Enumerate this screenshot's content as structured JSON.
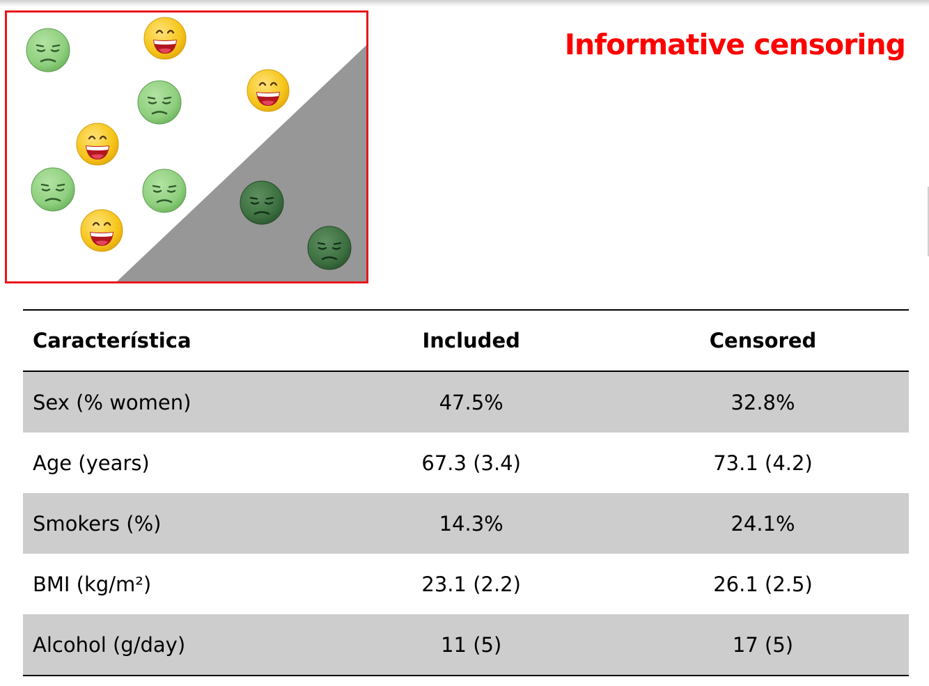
{
  "slide": {
    "title": "Informative censoring"
  },
  "colors": {
    "title": "#ff0000",
    "frame": "#e8151b",
    "censored_region": "#979797",
    "happy_face": "#f5c518",
    "sad_face": "#8fcf7e",
    "censored_face": "#3d7040",
    "shaded_row": "#cdcdcd"
  },
  "icons": {
    "happy": "grinning-face-icon",
    "sad": "pensive-green-face-icon",
    "censored": "pensive-dark-face-icon"
  },
  "table": {
    "headers": [
      "Característica",
      "Included",
      "Censored"
    ],
    "rows": [
      [
        "Sex (% women)",
        "47.5%",
        "32.8%"
      ],
      [
        "Age (years)",
        "67.3 (3.4)",
        "73.1 (4.2)"
      ],
      [
        "Smokers (%)",
        "14.3%",
        "24.1%"
      ],
      [
        "BMI (kg/m²)",
        "23.1 (2.2)",
        "26.1 (2.5)"
      ],
      [
        "Alcohol (g/day)",
        "11 (5)",
        "17 (5)"
      ]
    ]
  }
}
